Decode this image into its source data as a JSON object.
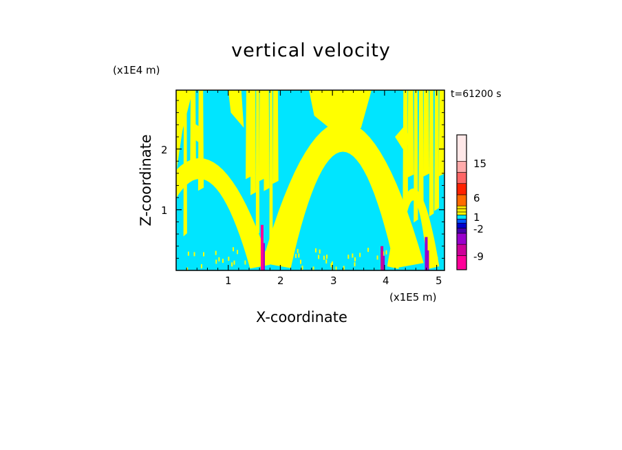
{
  "chart_data": {
    "type": "heatmap",
    "title": "vertical velocity",
    "xlabel": "X-coordinate",
    "ylabel": "Z-coordinate",
    "x_unit": "(x1E5 m)",
    "y_unit": "(x1E4 m)",
    "time_label": "t=61200 s",
    "xlim": [
      0,
      5.15
    ],
    "ylim": [
      0,
      2.97
    ],
    "x_ticks": [
      "1",
      "2",
      "3",
      "4",
      "5"
    ],
    "y_ticks": [
      "1",
      "2"
    ],
    "colorbar": {
      "tick_labels": [
        "15",
        "6",
        "1",
        "-2",
        "-9"
      ],
      "colors": [
        "#ff0099",
        "#cc0099",
        "#9900cc",
        "#4400aa",
        "#0000cc",
        "#0055ff",
        "#00e5ff",
        "#ffff00",
        "#ffee00",
        "#ffdd00",
        "#ff6a00",
        "#ff2200",
        "#ff6666",
        "#ffaaaa",
        "#ffe8e8"
      ]
    },
    "dominant_colors": {
      "updraft": "#ffff00",
      "downdraft": "#00e5ff"
    }
  }
}
